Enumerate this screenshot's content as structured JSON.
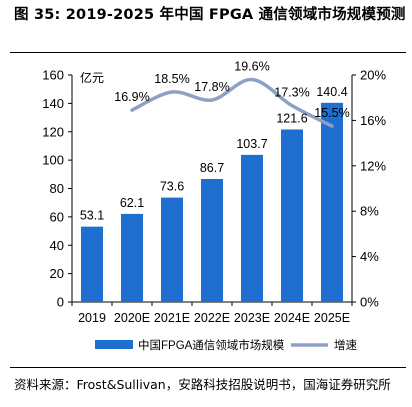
{
  "header": {
    "title": "图 35: 2019-2025 年中国 FPGA 通信领域市场规模预测"
  },
  "footer": {
    "source": "资料来源：Frost&Sullivan，安路科技招股说明书，国海证券研究所"
  },
  "chart_data": {
    "type": "bar",
    "categories": [
      "2019",
      "2020E",
      "2021E",
      "2022E",
      "2023E",
      "2024E",
      "2025E"
    ],
    "series": [
      {
        "name": "中国FPGA通信领域市场规模",
        "type": "bar",
        "axis": "left",
        "color": "#1f6fd1",
        "values": [
          53.1,
          62.1,
          73.6,
          86.7,
          103.7,
          121.6,
          140.4
        ],
        "labels": [
          "53.1",
          "62.1",
          "73.6",
          "86.7",
          "103.7",
          "121.6",
          "140.4"
        ]
      },
      {
        "name": "增速",
        "type": "line",
        "axis": "right",
        "color": "#8da0c6",
        "values": [
          null,
          16.9,
          18.5,
          17.8,
          19.6,
          17.3,
          15.5
        ],
        "labels": [
          "",
          "16.9%",
          "18.5%",
          "17.8%",
          "19.6%",
          "17.3%",
          "15.5%"
        ]
      }
    ],
    "ylabel": "亿元",
    "ylim": [
      0,
      160
    ],
    "yticks": [
      "0",
      "20",
      "40",
      "60",
      "80",
      "100",
      "120",
      "140",
      "160"
    ],
    "y2lim": [
      0,
      20
    ],
    "y2ticks": [
      "0%",
      "4%",
      "8%",
      "12%",
      "16%",
      "20%"
    ],
    "legend_position": "bottom",
    "grid": false
  }
}
